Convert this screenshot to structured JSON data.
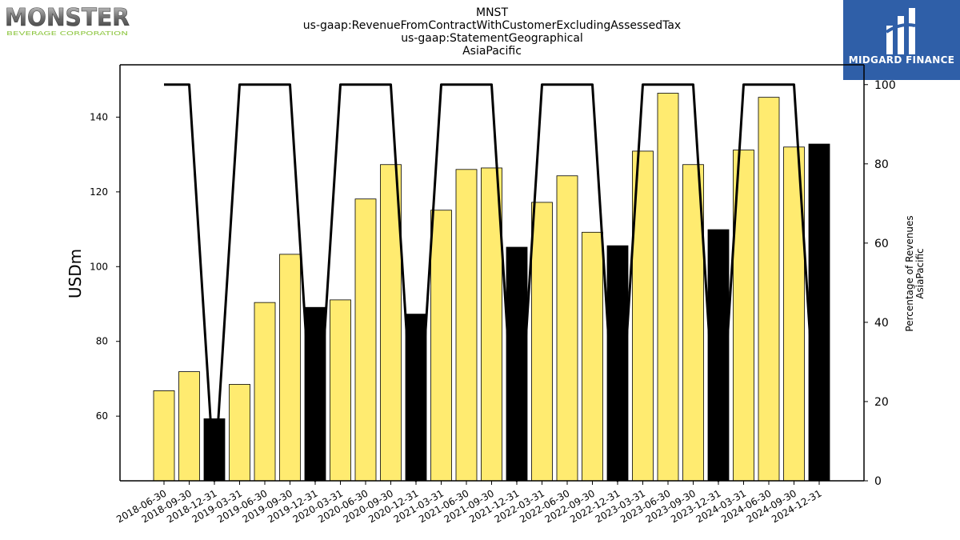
{
  "header": {
    "titles": [
      "MNST",
      "us-gaap:RevenueFromContractWithCustomerExcludingAssessedTax",
      "us-gaap:StatementGeographical",
      "AsiaPacific"
    ]
  },
  "logos": {
    "left_name": "MONSTER",
    "left_sub": "BEVERAGE CORPORATION",
    "right_name": "MIDGARD FINANCE"
  },
  "colors": {
    "bar_highlight": "#ffeb70",
    "bar_q4": "#000000",
    "line": "#000000",
    "right_logo_bg": "#2f5fa8"
  },
  "chart_data": {
    "type": "bar",
    "categories": [
      "2018-06-30",
      "2018-09-30",
      "2018-12-31",
      "2019-03-31",
      "2019-06-30",
      "2019-09-30",
      "2019-12-31",
      "2020-03-31",
      "2020-06-30",
      "2020-09-30",
      "2020-12-31",
      "2021-03-31",
      "2021-06-30",
      "2021-09-30",
      "2021-12-31",
      "2022-03-31",
      "2022-06-30",
      "2022-09-30",
      "2022-12-31",
      "2023-03-31",
      "2023-06-30",
      "2023-09-30",
      "2023-12-31",
      "2024-03-31",
      "2024-06-30",
      "2024-09-30",
      "2024-12-31"
    ],
    "values": [
      66.8,
      71.9,
      59.3,
      68.5,
      90.4,
      103.3,
      89.1,
      91.1,
      118.1,
      127.3,
      87.3,
      115.1,
      126.0,
      126.4,
      105.2,
      117.2,
      124.3,
      109.2,
      105.6,
      130.9,
      146.4,
      127.3,
      109.9,
      131.2,
      145.3,
      132.0,
      132.8
    ],
    "series": [
      {
        "name": "Percentage of Revenues AsiaPacific",
        "axis": "right",
        "type": "line",
        "values": [
          100,
          100,
          0,
          100,
          100,
          100,
          0,
          100,
          100,
          100,
          0,
          100,
          100,
          100,
          0,
          100,
          100,
          100,
          0,
          100,
          100,
          100,
          0,
          100,
          100,
          100,
          0
        ]
      }
    ],
    "ylabel": "USDm",
    "y2label": [
      "Percentage of Revenues",
      "AsiaPacific"
    ],
    "ylim": [
      42.7,
      154
    ],
    "y2lim": [
      0,
      105
    ],
    "yticks": [
      60,
      80,
      100,
      120,
      140
    ],
    "y2ticks": [
      0,
      20,
      40,
      60,
      80,
      100
    ],
    "q4_dark": true
  }
}
